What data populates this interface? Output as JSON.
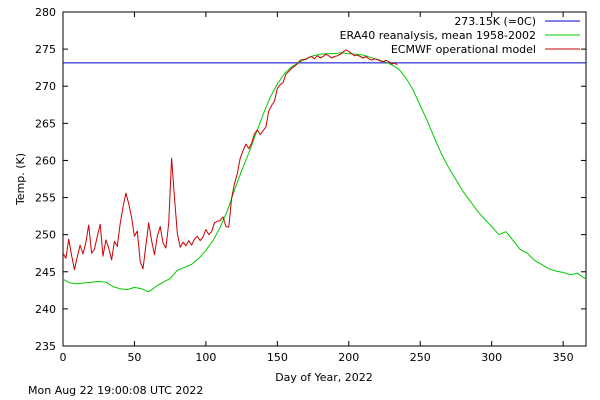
{
  "footer_timestamp": "Mon Aug 22 19:00:08 UTC 2022",
  "chart_data": {
    "type": "line",
    "title": "",
    "xlabel": "Day of Year, 2022",
    "ylabel": "Temp. (K)",
    "xlim": [
      0,
      366
    ],
    "ylim": [
      235,
      280
    ],
    "x_ticks": [
      0,
      50,
      100,
      150,
      200,
      250,
      300,
      350
    ],
    "y_ticks": [
      235,
      240,
      245,
      250,
      255,
      260,
      265,
      270,
      275,
      280
    ],
    "grid": false,
    "legend_position": "top-right",
    "reference_line": {
      "name": "273.15K (=0C)",
      "y": 273.15,
      "color": "#0000cc"
    },
    "series": [
      {
        "name": "ERA40 reanalysis, mean 1958-2002",
        "color": "#00cc00",
        "x": [
          0,
          5,
          10,
          15,
          20,
          25,
          30,
          35,
          40,
          45,
          50,
          55,
          60,
          65,
          70,
          75,
          80,
          85,
          90,
          95,
          100,
          105,
          110,
          115,
          120,
          125,
          130,
          135,
          140,
          145,
          150,
          155,
          160,
          165,
          170,
          175,
          180,
          185,
          190,
          195,
          200,
          205,
          210,
          215,
          220,
          225,
          230,
          235,
          240,
          245,
          250,
          255,
          260,
          265,
          270,
          275,
          280,
          285,
          290,
          295,
          300,
          305,
          310,
          315,
          320,
          325,
          330,
          335,
          340,
          345,
          350,
          355,
          360,
          366
        ],
        "y": [
          244,
          243.5,
          243.4,
          243.5,
          243.6,
          243.7,
          243.6,
          243.0,
          242.7,
          242.6,
          242.9,
          242.7,
          242.3,
          243.0,
          243.6,
          244.1,
          245.2,
          245.6,
          246.0,
          246.8,
          247.9,
          249.2,
          251.0,
          253.2,
          256.0,
          258.6,
          261.0,
          263.6,
          266.2,
          268.5,
          270.3,
          271.7,
          272.6,
          273.2,
          273.7,
          274.1,
          274.3,
          274.4,
          274.4,
          274.5,
          274.4,
          274.3,
          274.2,
          273.9,
          273.6,
          273.3,
          272.9,
          272.3,
          271.1,
          269.5,
          267.4,
          265.3,
          263.0,
          260.8,
          259.0,
          257.4,
          255.8,
          254.5,
          253.2,
          252.1,
          251.1,
          250.0,
          250.4,
          249.2,
          248.0,
          247.5,
          246.5,
          246.0,
          245.4,
          245.1,
          244.9,
          244.6,
          244.8,
          244.0
        ]
      },
      {
        "name": "ECMWF operational model",
        "color": "#cc0000",
        "x": [
          0,
          2,
          4,
          6,
          8,
          10,
          12,
          14,
          16,
          18,
          20,
          22,
          24,
          26,
          28,
          30,
          32,
          34,
          36,
          38,
          40,
          42,
          44,
          46,
          48,
          50,
          52,
          54,
          56,
          58,
          60,
          62,
          64,
          66,
          68,
          70,
          72,
          74,
          76,
          78,
          80,
          82,
          84,
          86,
          88,
          90,
          92,
          94,
          96,
          98,
          100,
          102,
          104,
          106,
          108,
          110,
          112,
          114,
          116,
          118,
          120,
          122,
          124,
          126,
          128,
          130,
          132,
          134,
          136,
          138,
          140,
          142,
          144,
          146,
          148,
          150,
          152,
          154,
          156,
          158,
          160,
          162,
          164,
          166,
          168,
          170,
          172,
          174,
          176,
          178,
          180,
          182,
          184,
          186,
          188,
          190,
          192,
          194,
          196,
          198,
          200,
          202,
          204,
          206,
          208,
          210,
          212,
          214,
          216,
          218,
          220,
          222,
          224,
          226,
          228,
          230,
          232,
          234
        ],
        "y": [
          247.5,
          246.8,
          249.4,
          247.2,
          245.3,
          247.0,
          248.6,
          247.4,
          249.0,
          251.3,
          247.5,
          248.0,
          249.8,
          251.4,
          247.1,
          249.3,
          248.2,
          246.6,
          249.1,
          248.4,
          251.5,
          253.7,
          255.6,
          254.2,
          252.3,
          249.8,
          250.5,
          246.4,
          245.4,
          248.6,
          251.6,
          249.2,
          247.3,
          249.8,
          251.1,
          248.9,
          248.2,
          251.5,
          260.3,
          255.0,
          250.2,
          248.3,
          249.0,
          248.5,
          249.2,
          248.6,
          249.4,
          249.8,
          249.2,
          249.7,
          250.7,
          250.0,
          250.4,
          251.6,
          251.8,
          251.9,
          252.4,
          251.1,
          251.0,
          254.9,
          256.9,
          258.2,
          260.3,
          261.3,
          262.2,
          261.6,
          262.3,
          263.6,
          264.1,
          263.5,
          264.0,
          264.5,
          266.7,
          267.4,
          268.0,
          269.7,
          270.2,
          270.5,
          271.6,
          272.0,
          272.4,
          272.7,
          273.0,
          273.5,
          273.6,
          273.6,
          273.9,
          274.0,
          273.7,
          274.1,
          273.8,
          274.0,
          274.3,
          274.1,
          273.8,
          274.0,
          274.1,
          274.3,
          274.6,
          274.9,
          274.7,
          274.4,
          274.1,
          274.2,
          274.0,
          273.8,
          274.0,
          273.7,
          273.5,
          273.7,
          273.6,
          273.4,
          273.3,
          273.5,
          273.3,
          273.0,
          273.1,
          272.9
        ]
      }
    ]
  }
}
